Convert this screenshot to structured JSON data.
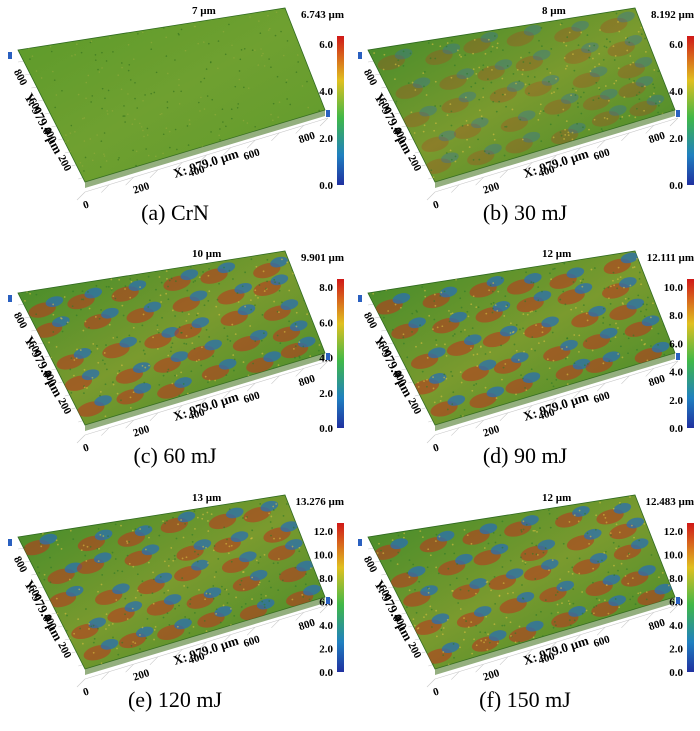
{
  "panels": [
    {
      "caption": "(a) CrN",
      "zmax_label": "7 µm",
      "scale_max": "6.743 µm",
      "scale_ticks": [
        "6.0",
        "4.0",
        "2.0",
        "0.0"
      ],
      "x_axis_label": "X: 979.0 µm",
      "y_axis_label": "Y: 979.0 µm",
      "x_ticks": [
        "0",
        "200",
        "400",
        "600",
        "800"
      ],
      "y_ticks": [
        "200",
        "400",
        "600",
        "800"
      ],
      "texture": "flat"
    },
    {
      "caption": "(b) 30 mJ",
      "zmax_label": "8 µm",
      "scale_max": "8.192 µm",
      "scale_ticks": [
        "6.0",
        "4.0",
        "2.0",
        "0.0"
      ],
      "x_axis_label": "X: 979.0 µm",
      "y_axis_label": "Y: 979.0 µm",
      "x_ticks": [
        "0",
        "200",
        "400",
        "600",
        "800"
      ],
      "y_ticks": [
        "200",
        "400",
        "600",
        "800"
      ],
      "texture": "light"
    },
    {
      "caption": "(c) 60 mJ",
      "zmax_label": "10 µm",
      "scale_max": "9.901 µm",
      "scale_ticks": [
        "8.0",
        "6.0",
        "4.0",
        "2.0",
        "0.0"
      ],
      "x_axis_label": "X: 979.0 µm",
      "y_axis_label": "Y: 979.0 µm",
      "x_ticks": [
        "0",
        "200",
        "400",
        "600",
        "800"
      ],
      "y_ticks": [
        "200",
        "400",
        "600",
        "800"
      ],
      "texture": "dimpled"
    },
    {
      "caption": "(d) 90 mJ",
      "zmax_label": "12 µm",
      "scale_max": "12.111 µm",
      "scale_ticks": [
        "10.0",
        "8.0",
        "6.0",
        "4.0",
        "2.0",
        "0.0"
      ],
      "x_axis_label": "X: 979.0 µm",
      "y_axis_label": "Y: 979.0 µm",
      "x_ticks": [
        "0",
        "200",
        "400",
        "600",
        "800"
      ],
      "y_ticks": [
        "200",
        "400",
        "600",
        "800"
      ],
      "texture": "dimpled"
    },
    {
      "caption": "(e) 120 mJ",
      "zmax_label": "13 µm",
      "scale_max": "13.276 µm",
      "scale_ticks": [
        "12.0",
        "10.0",
        "8.0",
        "6.0",
        "4.0",
        "2.0",
        "0.0"
      ],
      "x_axis_label": "X: 979.0 µm",
      "y_axis_label": "Y: 979.0 µm",
      "x_ticks": [
        "0",
        "200",
        "400",
        "600",
        "800"
      ],
      "y_ticks": [
        "200",
        "400",
        "600",
        "800"
      ],
      "texture": "dimpled"
    },
    {
      "caption": "(f) 150 mJ",
      "zmax_label": "12 µm",
      "scale_max": "12.483 µm",
      "scale_ticks": [
        "12.0",
        "10.0",
        "8.0",
        "6.0",
        "4.0",
        "2.0",
        "0.0"
      ],
      "x_axis_label": "X: 979.0 µm",
      "y_axis_label": "Y: 979.0 µm",
      "x_ticks": [
        "0",
        "200",
        "400",
        "600",
        "800"
      ],
      "y_ticks": [
        "200",
        "400",
        "600",
        "800"
      ],
      "texture": "dimpled"
    }
  ],
  "colors": {
    "surface_green": "#3d8a2a",
    "surface_olive": "#7a9a2e",
    "peak_red": "#b83a1e",
    "valley_blue": "#2a6fb0",
    "scale_top": "#d01818",
    "scale_mid": "#40b848",
    "scale_bottom": "#2030a0"
  }
}
